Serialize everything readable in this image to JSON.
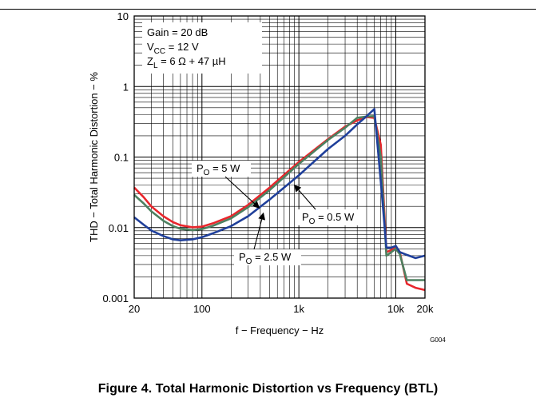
{
  "figure": {
    "caption": "Figure 4. Total Harmonic Distortion vs Frequency (BTL)",
    "figure_id": "G004"
  },
  "chart_data": {
    "type": "line",
    "title": "",
    "xlabel": "f − Frequency − Hz",
    "ylabel": "THD − Total Harmonic Distortion − %",
    "x_scale": "log",
    "y_scale": "log",
    "xlim": [
      20,
      20000
    ],
    "ylim": [
      0.001,
      10
    ],
    "grid": true,
    "x_tick_labels": [
      {
        "value": 20,
        "label": "20"
      },
      {
        "value": 100,
        "label": "100"
      },
      {
        "value": 1000,
        "label": "1k"
      },
      {
        "value": 10000,
        "label": "10k"
      },
      {
        "value": 20000,
        "label": "20k"
      }
    ],
    "y_tick_labels": [
      {
        "value": 10,
        "label": "10"
      },
      {
        "value": 1,
        "label": "1"
      },
      {
        "value": 0.1,
        "label": "0.1"
      },
      {
        "value": 0.01,
        "label": "0.01"
      },
      {
        "value": 0.001,
        "label": "0.001"
      }
    ],
    "conditions": [
      {
        "key": "gain",
        "main": "Gain = 20 dB",
        "parts": [
          [
            "Gain = 20 dB",
            ""
          ]
        ]
      },
      {
        "key": "vcc",
        "main": "VCC = 12 V",
        "parts": [
          [
            "V",
            ""
          ],
          [
            "CC",
            "sub"
          ],
          [
            " = 12 V",
            ""
          ]
        ]
      },
      {
        "key": "zl",
        "main": "ZL = 6 Ω + 47 µH",
        "parts": [
          [
            "Z",
            ""
          ],
          [
            "L",
            "sub"
          ],
          [
            " = 6 Ω + 47 µH",
            ""
          ]
        ]
      }
    ],
    "series": [
      {
        "name": "PO = 5 W",
        "color": "#e8262c",
        "points": [
          [
            20,
            0.037
          ],
          [
            25,
            0.027
          ],
          [
            30,
            0.02
          ],
          [
            40,
            0.0145
          ],
          [
            50,
            0.012
          ],
          [
            60,
            0.0108
          ],
          [
            80,
            0.0101
          ],
          [
            100,
            0.0103
          ],
          [
            130,
            0.0115
          ],
          [
            200,
            0.0145
          ],
          [
            300,
            0.021
          ],
          [
            500,
            0.037
          ],
          [
            1000,
            0.085
          ],
          [
            2000,
            0.18
          ],
          [
            3000,
            0.27
          ],
          [
            4000,
            0.33
          ],
          [
            5000,
            0.37
          ],
          [
            6000,
            0.36
          ],
          [
            7000,
            0.15
          ],
          [
            8000,
            0.0045
          ],
          [
            9000,
            0.0048
          ],
          [
            10000,
            0.0052
          ],
          [
            11000,
            0.0045
          ],
          [
            13000,
            0.0016
          ],
          [
            16000,
            0.0014
          ],
          [
            20000,
            0.0013
          ]
        ]
      },
      {
        "name": "PO = 2.5 W",
        "color": "#4d8060",
        "points": [
          [
            20,
            0.029
          ],
          [
            25,
            0.022
          ],
          [
            30,
            0.017
          ],
          [
            40,
            0.0125
          ],
          [
            50,
            0.0105
          ],
          [
            60,
            0.0096
          ],
          [
            80,
            0.0092
          ],
          [
            100,
            0.0095
          ],
          [
            130,
            0.0106
          ],
          [
            200,
            0.0135
          ],
          [
            300,
            0.0195
          ],
          [
            500,
            0.034
          ],
          [
            1000,
            0.08
          ],
          [
            2000,
            0.175
          ],
          [
            3000,
            0.26
          ],
          [
            4000,
            0.36
          ],
          [
            5000,
            0.375
          ],
          [
            6000,
            0.38
          ],
          [
            7000,
            0.1
          ],
          [
            8000,
            0.004
          ],
          [
            9000,
            0.0045
          ],
          [
            10000,
            0.005
          ],
          [
            11000,
            0.0042
          ],
          [
            13000,
            0.0018
          ],
          [
            16000,
            0.0018
          ],
          [
            20000,
            0.0018
          ]
        ]
      },
      {
        "name": "PO = 0.5 W",
        "color": "#1f3f9a",
        "points": [
          [
            20,
            0.014
          ],
          [
            25,
            0.011
          ],
          [
            30,
            0.0091
          ],
          [
            40,
            0.0076
          ],
          [
            50,
            0.0068
          ],
          [
            60,
            0.0066
          ],
          [
            80,
            0.0068
          ],
          [
            100,
            0.0073
          ],
          [
            130,
            0.0083
          ],
          [
            200,
            0.0105
          ],
          [
            300,
            0.0145
          ],
          [
            500,
            0.025
          ],
          [
            1000,
            0.055
          ],
          [
            2000,
            0.13
          ],
          [
            3000,
            0.2
          ],
          [
            4000,
            0.29
          ],
          [
            5000,
            0.38
          ],
          [
            6000,
            0.48
          ],
          [
            7000,
            0.045
          ],
          [
            8000,
            0.0052
          ],
          [
            9000,
            0.0052
          ],
          [
            10000,
            0.0055
          ],
          [
            11000,
            0.0045
          ],
          [
            13000,
            0.0041
          ],
          [
            16000,
            0.0037
          ],
          [
            20000,
            0.004
          ]
        ]
      }
    ],
    "annotations": [
      {
        "text": "PO = 5 W",
        "parts": [
          [
            "P",
            ""
          ],
          [
            "O",
            "sub"
          ],
          [
            " = 5 W",
            ""
          ]
        ],
        "target": [
          390,
          0.019
        ],
        "anchor": "left-of-curve"
      },
      {
        "text": "PO = 0.5 W",
        "parts": [
          [
            "P",
            ""
          ],
          [
            "O",
            "sub"
          ],
          [
            " = 0.5 W",
            ""
          ]
        ],
        "target": [
          900,
          0.04
        ],
        "anchor": "below-right-of-curve"
      },
      {
        "text": "PO = 2.5 W",
        "parts": [
          [
            "P",
            ""
          ],
          [
            "O",
            "sub"
          ],
          [
            " = 2.5 W",
            ""
          ]
        ],
        "target": [
          430,
          0.016
        ],
        "anchor": "below-curve"
      }
    ]
  }
}
